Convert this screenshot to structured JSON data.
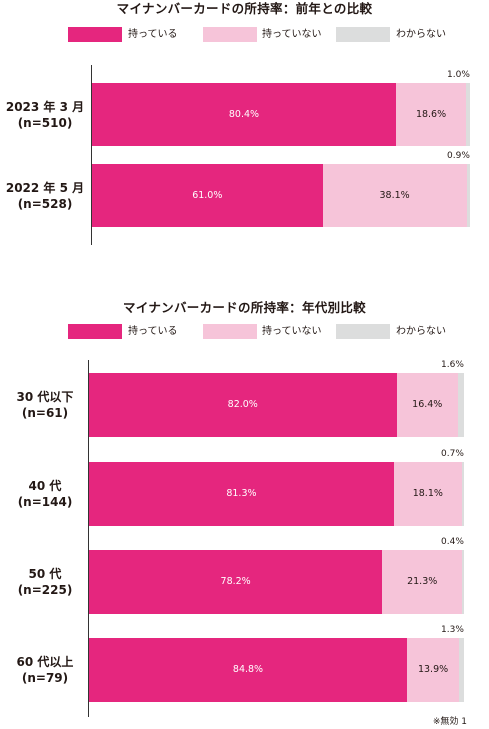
{
  "colors": {
    "have": "#e5267e",
    "not_have": "#f6c4d9",
    "unknown": "#dcdddd"
  },
  "legend": {
    "have": "持っている",
    "not_have": "持っていない",
    "unknown": "わからない"
  },
  "footnote": "※無効 1",
  "chart_data": [
    {
      "type": "bar",
      "orientation": "horizontal",
      "stacked": true,
      "title": "マイナンバーカードの所持率：前年との比較",
      "categories": [
        "2023 年 3 月\n(n=510)",
        "2022 年 5 月\n(n=528)"
      ],
      "series": [
        {
          "name": "持っている",
          "values": [
            80.4,
            61.0
          ]
        },
        {
          "name": "持っていない",
          "values": [
            18.6,
            38.1
          ]
        },
        {
          "name": "わからない",
          "values": [
            1.0,
            0.9
          ]
        }
      ],
      "value_labels": [
        [
          "80.4%",
          "18.6%",
          "1.0%"
        ],
        [
          "61.0%",
          "38.1%",
          "0.9%"
        ]
      ],
      "xlim": [
        0,
        100
      ],
      "legend_position": "top"
    },
    {
      "type": "bar",
      "orientation": "horizontal",
      "stacked": true,
      "title": "マイナンバーカードの所持率：年代別比較",
      "categories": [
        "30 代以下\n(n=61)",
        "40 代\n(n=144)",
        "50 代\n(n=225)",
        "60 代以上\n(n=79)"
      ],
      "series": [
        {
          "name": "持っている",
          "values": [
            82.0,
            81.3,
            78.2,
            84.8
          ]
        },
        {
          "name": "持っていない",
          "values": [
            16.4,
            18.1,
            21.3,
            13.9
          ]
        },
        {
          "name": "わからない",
          "values": [
            1.6,
            0.7,
            0.4,
            1.3
          ]
        }
      ],
      "value_labels": [
        [
          "82.0%",
          "16.4%",
          "1.6%"
        ],
        [
          "81.3%",
          "18.1%",
          "0.7%"
        ],
        [
          "78.2%",
          "21.3%",
          "0.4%"
        ],
        [
          "84.8%",
          "13.9%",
          "1.3%"
        ]
      ],
      "xlim": [
        0,
        100
      ],
      "legend_position": "top"
    }
  ]
}
